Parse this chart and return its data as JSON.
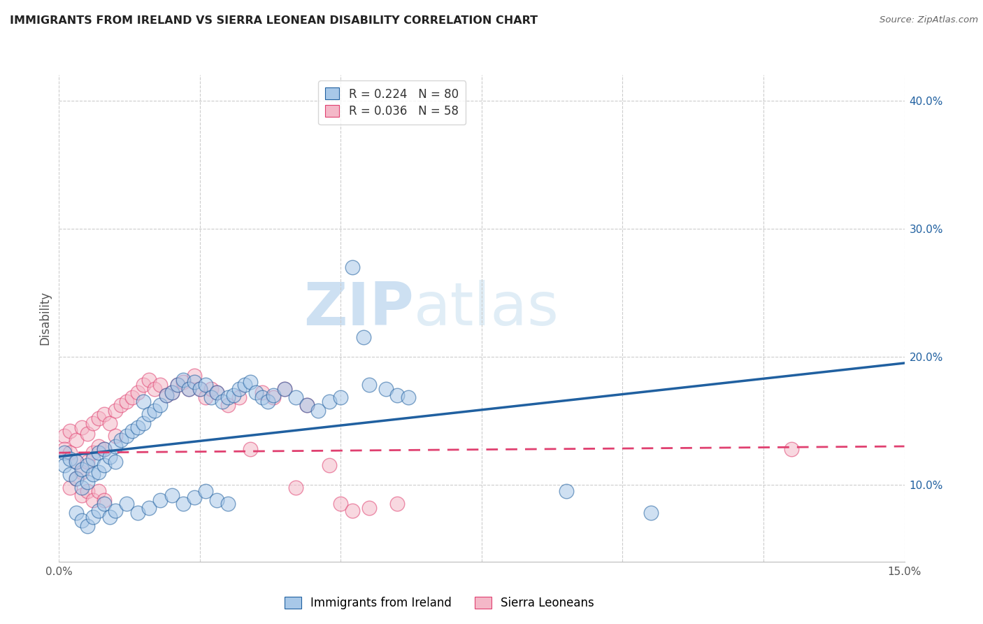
{
  "title": "IMMIGRANTS FROM IRELAND VS SIERRA LEONEAN DISABILITY CORRELATION CHART",
  "source": "Source: ZipAtlas.com",
  "ylabel": "Disability",
  "legend_label1": "Immigrants from Ireland",
  "legend_label2": "Sierra Leoneans",
  "r1": 0.224,
  "n1": 80,
  "r2": 0.036,
  "n2": 58,
  "xlim": [
    0.0,
    0.15
  ],
  "ylim": [
    0.04,
    0.42
  ],
  "yticks": [
    0.1,
    0.2,
    0.3,
    0.4
  ],
  "ytick_labels": [
    "10.0%",
    "20.0%",
    "30.0%",
    "40.0%"
  ],
  "color_blue": "#a8c8e8",
  "color_pink": "#f4b8c8",
  "color_blue_line": "#2060a0",
  "color_pink_line": "#e04070",
  "watermark_zip": "ZIP",
  "watermark_atlas": "atlas",
  "blue_line_x0": 0.0,
  "blue_line_y0": 0.122,
  "blue_line_x1": 0.15,
  "blue_line_y1": 0.195,
  "pink_line_x0": 0.0,
  "pink_line_y0": 0.125,
  "pink_line_x1": 0.15,
  "pink_line_y1": 0.13,
  "blue_x": [
    0.001,
    0.001,
    0.002,
    0.002,
    0.003,
    0.003,
    0.004,
    0.004,
    0.005,
    0.005,
    0.006,
    0.006,
    0.007,
    0.007,
    0.008,
    0.008,
    0.009,
    0.01,
    0.01,
    0.011,
    0.012,
    0.013,
    0.014,
    0.015,
    0.015,
    0.016,
    0.017,
    0.018,
    0.019,
    0.02,
    0.021,
    0.022,
    0.023,
    0.024,
    0.025,
    0.026,
    0.027,
    0.028,
    0.029,
    0.03,
    0.031,
    0.032,
    0.033,
    0.034,
    0.035,
    0.036,
    0.037,
    0.038,
    0.04,
    0.042,
    0.044,
    0.046,
    0.048,
    0.05,
    0.052,
    0.054,
    0.055,
    0.058,
    0.06,
    0.062,
    0.003,
    0.004,
    0.005,
    0.006,
    0.007,
    0.008,
    0.009,
    0.01,
    0.012,
    0.014,
    0.016,
    0.018,
    0.02,
    0.022,
    0.024,
    0.026,
    0.028,
    0.03,
    0.09,
    0.105
  ],
  "blue_y": [
    0.125,
    0.115,
    0.12,
    0.108,
    0.118,
    0.105,
    0.112,
    0.098,
    0.115,
    0.102,
    0.12,
    0.108,
    0.125,
    0.11,
    0.128,
    0.115,
    0.122,
    0.13,
    0.118,
    0.135,
    0.138,
    0.142,
    0.145,
    0.148,
    0.165,
    0.155,
    0.158,
    0.162,
    0.17,
    0.172,
    0.178,
    0.182,
    0.175,
    0.18,
    0.175,
    0.178,
    0.168,
    0.172,
    0.165,
    0.168,
    0.17,
    0.175,
    0.178,
    0.18,
    0.172,
    0.168,
    0.165,
    0.17,
    0.175,
    0.168,
    0.162,
    0.158,
    0.165,
    0.168,
    0.27,
    0.215,
    0.178,
    0.175,
    0.17,
    0.168,
    0.078,
    0.072,
    0.068,
    0.075,
    0.08,
    0.085,
    0.075,
    0.08,
    0.085,
    0.078,
    0.082,
    0.088,
    0.092,
    0.085,
    0.09,
    0.095,
    0.088,
    0.085,
    0.095,
    0.078
  ],
  "pink_x": [
    0.001,
    0.001,
    0.002,
    0.002,
    0.003,
    0.003,
    0.004,
    0.004,
    0.005,
    0.005,
    0.006,
    0.006,
    0.007,
    0.007,
    0.008,
    0.008,
    0.009,
    0.01,
    0.01,
    0.011,
    0.012,
    0.013,
    0.014,
    0.015,
    0.016,
    0.017,
    0.018,
    0.019,
    0.02,
    0.021,
    0.022,
    0.023,
    0.024,
    0.025,
    0.026,
    0.027,
    0.028,
    0.03,
    0.032,
    0.034,
    0.036,
    0.038,
    0.04,
    0.042,
    0.044,
    0.048,
    0.05,
    0.052,
    0.055,
    0.06,
    0.002,
    0.003,
    0.004,
    0.005,
    0.006,
    0.007,
    0.008,
    0.13
  ],
  "pink_y": [
    0.138,
    0.128,
    0.142,
    0.125,
    0.135,
    0.118,
    0.145,
    0.11,
    0.14,
    0.118,
    0.148,
    0.125,
    0.152,
    0.13,
    0.155,
    0.128,
    0.148,
    0.158,
    0.138,
    0.162,
    0.165,
    0.168,
    0.172,
    0.178,
    0.182,
    0.175,
    0.178,
    0.17,
    0.172,
    0.178,
    0.18,
    0.175,
    0.185,
    0.175,
    0.168,
    0.175,
    0.172,
    0.162,
    0.168,
    0.128,
    0.172,
    0.168,
    0.175,
    0.098,
    0.162,
    0.115,
    0.085,
    0.08,
    0.082,
    0.085,
    0.098,
    0.105,
    0.092,
    0.095,
    0.088,
    0.095,
    0.088,
    0.128
  ]
}
